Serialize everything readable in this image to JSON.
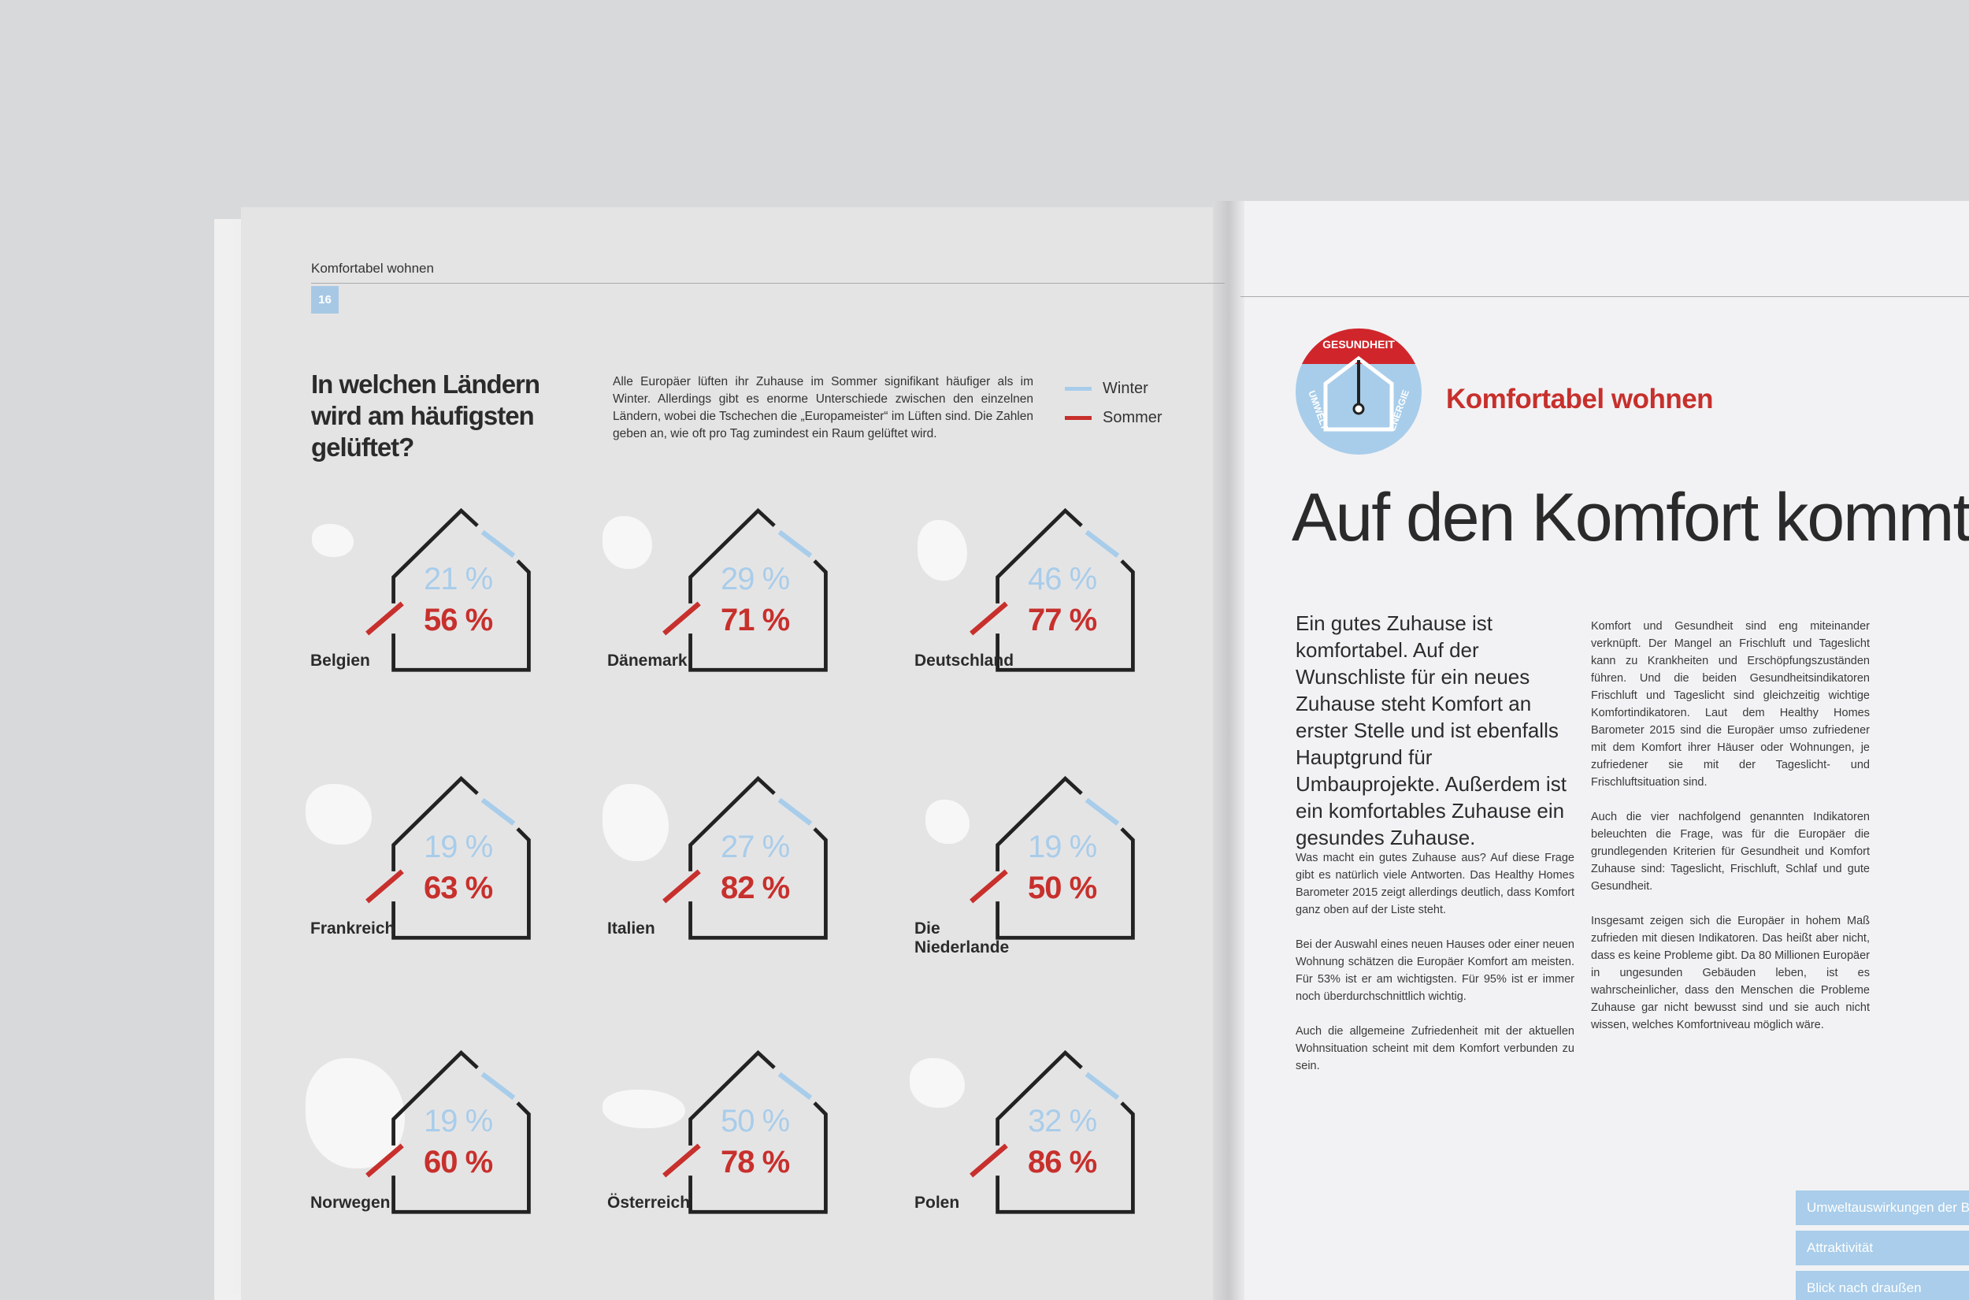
{
  "left_page": {
    "running_head": "Komfortabel wohnen",
    "page_number": "16",
    "title": "In welchen Ländern wird am häufigsten gelüftet?",
    "intro": "Alle Europäer lüften ihr Zuhause im Sommer signifikant häufiger als im Winter. Allerdings gibt es enorme Unterschiede zwischen den einzelnen Ländern, wobei die Tschechen die „Europameister“ im Lüften sind. Die Zahlen geben an, wie oft pro Tag zumindest ein Raum gelüftet wird.",
    "legend": [
      "Winter",
      "Sommer"
    ],
    "countries": [
      {
        "name": "Belgien",
        "winter": "21 %",
        "summer": "56 %"
      },
      {
        "name": "Dänemark",
        "winter": "29 %",
        "summer": "71 %"
      },
      {
        "name": "Deutschland",
        "winter": "46 %",
        "summer": "77 %"
      },
      {
        "name": "Frankreich",
        "winter": "19 %",
        "summer": "63 %"
      },
      {
        "name": "Italien",
        "winter": "27 %",
        "summer": "82 %"
      },
      {
        "name": "Die Niederlande",
        "winter": "19 %",
        "summer": "50 %"
      },
      {
        "name": "Norwegen",
        "winter": "19 %",
        "summer": "60 %"
      },
      {
        "name": "Österreich",
        "winter": "50 %",
        "summer": "78 %"
      },
      {
        "name": "Polen",
        "winter": "32 %",
        "summer": "86 %"
      }
    ]
  },
  "right_page": {
    "badge": [
      "GESUNDHEIT",
      "UMWELT",
      "ENERGIE"
    ],
    "section": "Komfortabel wohnen",
    "headline": "Auf den Komfort kommt",
    "lead": "Ein gutes Zuhause ist komfortabel. Auf der Wunschliste für ein neues Zuhause steht Komfort an erster Stelle und ist ebenfalls Hauptgrund für Umbauprojekte. Außerdem ist ein komfortables Zuhause ein gesundes Zuhause.",
    "column_1": [
      "Was macht ein gutes Zuhause aus? Auf diese Frage gibt es natürlich viele Antworten. Das Healthy Homes Barometer 2015 zeigt allerdings deutlich, dass Komfort ganz oben auf der Liste steht.",
      "Bei der Auswahl eines neuen Hauses oder einer neuen Wohnung schätzen die Europäer Komfort am meisten. Für 53% ist er am wichtigsten. Für 95% ist er immer noch überdurchschnittlich wichtig.",
      "Auch die allgemeine Zufriedenheit mit der aktuellen Wohnsituation scheint mit dem Komfort verbunden zu sein."
    ],
    "column_2": [
      "Komfort und Gesundheit sind eng miteinander verknüpft. Der Mangel an Frischluft und Tageslicht kann zu Krankheiten und Erschöpfungszuständen führen. Und die beiden Gesundheitsindikatoren Frischluft und Tageslicht sind gleichzeitig wichtige Komfortindikatoren. Laut dem Healthy Homes Barometer 2015 sind die Europäer umso zufriedener mit dem Komfort ihrer Häuser oder Wohnungen, je zufriedener sie mit der Tageslicht- und Frischluftsituation sind.",
      "Auch die vier nachfolgend genannten Indikatoren beleuchten die Frage, was für die Europäer die grundlegenden Kriterien für Gesundheit und Komfort Zuhause sind: Tageslicht, Frischluft, Schlaf und gute Gesundheit.",
      "Insgesamt zeigen sich die Europäer in hohem Maß zufrieden mit diesen Indikatoren. Das heißt aber nicht, dass es keine Probleme gibt. Da 80 Millionen Europäer in ungesunden Gebäuden leben, ist es wahrscheinlicher, dass den Menschen die Probleme Zuhause gar nicht bewusst sind und sie auch nicht wissen, welches Komfortniveau möglich wäre."
    ],
    "tabs": [
      "Umweltauswirkungen der Ba",
      "Attraktivität",
      "Blick nach draußen"
    ]
  }
}
